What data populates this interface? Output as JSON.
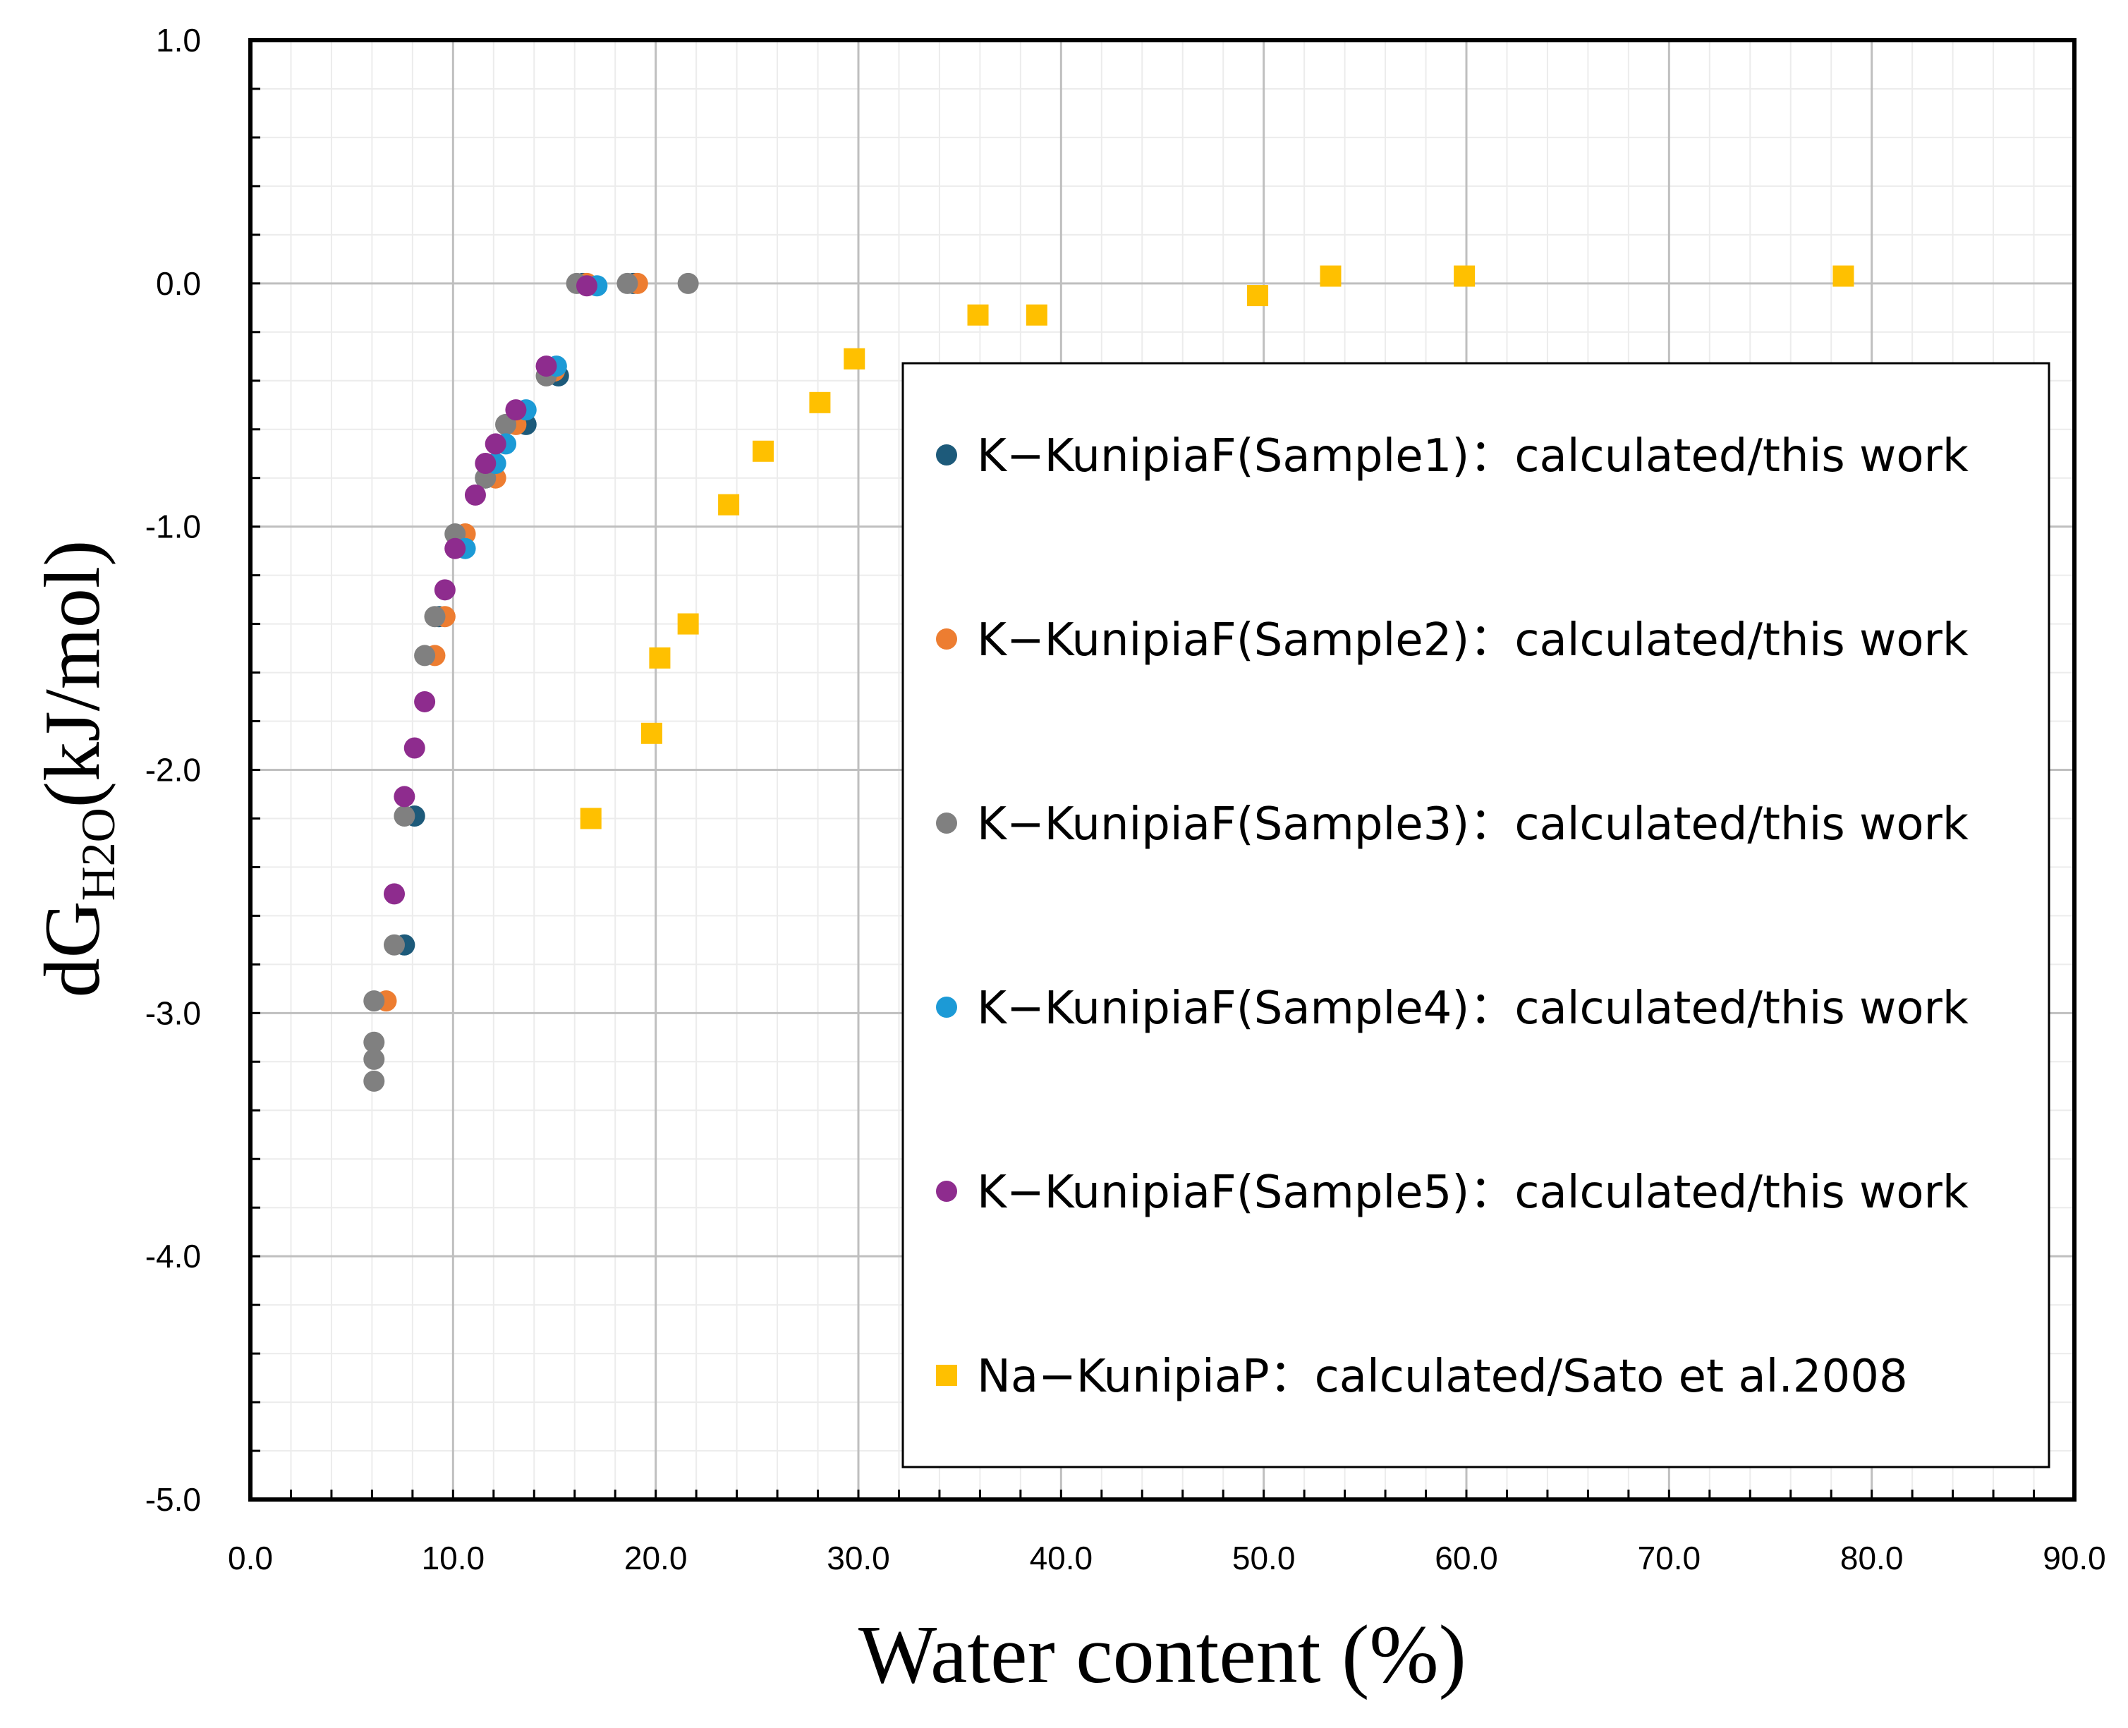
{
  "chart_data": {
    "type": "scatter",
    "xlabel": "Water content (%)",
    "ylabel": {
      "prefix": "dG",
      "subscript": "H2O",
      "suffix": "(kJ/mol)"
    },
    "xlim": [
      0,
      90
    ],
    "ylim": [
      -5,
      1
    ],
    "x_ticks": [
      "0.0",
      "10.0",
      "20.0",
      "30.0",
      "40.0",
      "50.0",
      "60.0",
      "70.0",
      "80.0",
      "90.0"
    ],
    "y_ticks": [
      "1.0",
      "0.0",
      "-1.0",
      "-2.0",
      "-3.0",
      "-4.0",
      "-5.0"
    ],
    "grid": true,
    "legend_position": "right",
    "series": [
      {
        "name": "K−KunipiaF(Sample1)：calculated/this work",
        "marker": "circle",
        "color": "#1d5a7a",
        "points": [
          [
            7.6,
            -2.72
          ],
          [
            8.1,
            -2.19
          ],
          [
            9.3,
            -1.37
          ],
          [
            11.6,
            -0.8
          ],
          [
            13.6,
            -0.58
          ],
          [
            15.2,
            -0.38
          ],
          [
            16.4,
            0.0
          ],
          [
            18.9,
            0.0
          ]
        ]
      },
      {
        "name": "K−KunipiaF(Sample2)：calculated/this work",
        "marker": "circle",
        "color": "#ed7d31",
        "points": [
          [
            6.7,
            -2.95
          ],
          [
            9.1,
            -1.53
          ],
          [
            9.6,
            -1.37
          ],
          [
            10.6,
            -1.03
          ],
          [
            12.1,
            -0.8
          ],
          [
            13.1,
            -0.58
          ],
          [
            15.0,
            -0.36
          ],
          [
            16.6,
            0.0
          ],
          [
            19.1,
            0.0
          ]
        ]
      },
      {
        "name": "K−KunipiaF(Sample3)：calculated/this work",
        "marker": "circle",
        "color": "#808080",
        "points": [
          [
            6.1,
            -3.28
          ],
          [
            6.1,
            -3.19
          ],
          [
            6.1,
            -3.12
          ],
          [
            6.1,
            -2.95
          ],
          [
            7.1,
            -2.72
          ],
          [
            7.6,
            -2.19
          ],
          [
            8.6,
            -1.53
          ],
          [
            9.1,
            -1.37
          ],
          [
            10.1,
            -1.03
          ],
          [
            11.6,
            -0.8
          ],
          [
            12.6,
            -0.58
          ],
          [
            14.6,
            -0.38
          ],
          [
            16.1,
            0.0
          ],
          [
            18.6,
            0.0
          ],
          [
            21.6,
            0.0
          ]
        ]
      },
      {
        "name": "K−KunipiaF(Sample4)：calculated/this work",
        "marker": "circle",
        "color": "#1c9ad6",
        "points": [
          [
            10.6,
            -1.09
          ],
          [
            12.1,
            -0.74
          ],
          [
            12.6,
            -0.66
          ],
          [
            13.6,
            -0.52
          ],
          [
            15.1,
            -0.34
          ],
          [
            17.1,
            -0.01
          ]
        ]
      },
      {
        "name": "K−KunipiaF(Sample5)：calculated/this work",
        "marker": "circle",
        "color": "#8e2c8e",
        "points": [
          [
            7.1,
            -2.51
          ],
          [
            7.6,
            -2.11
          ],
          [
            8.1,
            -1.91
          ],
          [
            8.6,
            -1.72
          ],
          [
            9.6,
            -1.26
          ],
          [
            10.1,
            -1.09
          ],
          [
            11.1,
            -0.87
          ],
          [
            11.6,
            -0.74
          ],
          [
            12.1,
            -0.66
          ],
          [
            13.1,
            -0.52
          ],
          [
            14.6,
            -0.34
          ],
          [
            16.6,
            -0.01
          ]
        ]
      },
      {
        "name": "Na−KunipiaP：calculated/Sato et al.2008",
        "marker": "square",
        "color": "#ffc000",
        "points": [
          [
            16.8,
            -2.2
          ],
          [
            19.8,
            -1.85
          ],
          [
            20.2,
            -1.54
          ],
          [
            21.6,
            -1.4
          ],
          [
            23.6,
            -0.91
          ],
          [
            25.3,
            -0.69
          ],
          [
            28.1,
            -0.49
          ],
          [
            29.8,
            -0.31
          ],
          [
            35.9,
            -0.13
          ],
          [
            38.8,
            -0.13
          ],
          [
            49.7,
            -0.05
          ],
          [
            53.3,
            0.03
          ],
          [
            59.9,
            0.03
          ],
          [
            78.6,
            0.03
          ]
        ]
      }
    ]
  }
}
